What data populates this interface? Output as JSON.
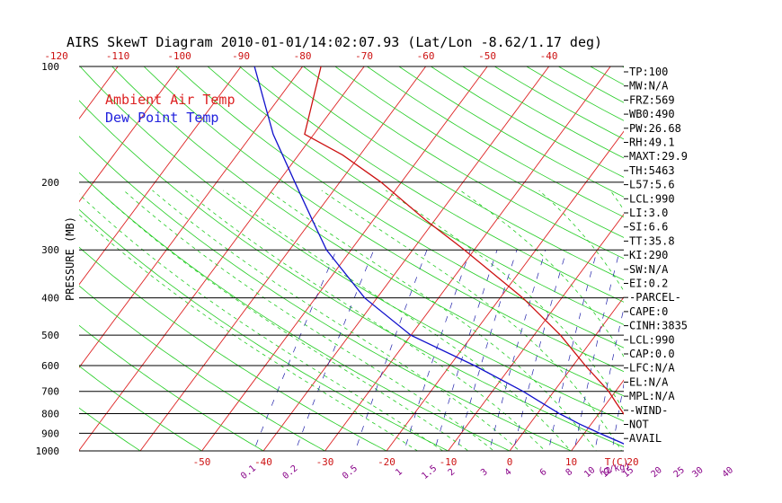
{
  "chart_data": {
    "type": "line",
    "title": "AIRS SkewT Diagram 2010-01-01/14:02:07.93 (Lat/Lon -8.62/1.17 deg)",
    "ylabel": "PRESSURE (MB)",
    "y_scale": "log",
    "ylim": [
      1000,
      100
    ],
    "pressure_ticks": [
      100,
      200,
      300,
      400,
      500,
      600,
      700,
      800,
      900,
      1000
    ],
    "pressure_tick_labels": [
      "100",
      "200",
      "300",
      "400",
      "500",
      "600",
      "700",
      "800",
      "900",
      "1000"
    ],
    "bottom_temp_ticks": [
      -50,
      -40,
      -30,
      -20,
      -10,
      0,
      10,
      20
    ],
    "bottom_temp_labels": [
      "-50",
      "-40",
      "-30",
      "-20",
      "-10",
      "0",
      "10",
      "20"
    ],
    "bottom_axis_unit_label": "T(C)",
    "top_temp_ticks": [
      -120,
      -110,
      -100,
      -90,
      -80,
      -70,
      -60,
      -50,
      -40
    ],
    "top_temp_labels": [
      "-120",
      "-110",
      "-100",
      "-90",
      "-80",
      "-70",
      "-60",
      "-50",
      "-40"
    ],
    "mixing_ratio_labels": [
      "0.1",
      "0.2",
      "0.5",
      "1",
      "1.5",
      "2",
      "3",
      "4",
      "6",
      "8",
      "10",
      "12",
      "15",
      "20",
      "25",
      "30",
      "40"
    ],
    "mixing_ratio_unit_label": "(g/kg)",
    "legend": {
      "placement": "top-left",
      "entries": [
        {
          "name": "Ambient Air Temp",
          "color": "#dd2222"
        },
        {
          "name": "Dew Point Temp",
          "color": "#2222dd"
        }
      ]
    },
    "series": [
      {
        "name": "Ambient Air Temp",
        "color": "#cc1111",
        "points": [
          {
            "p": 1000,
            "t": 24.9
          },
          {
            "p": 985,
            "t": 23.9
          },
          {
            "p": 950,
            "t": 21.5
          },
          {
            "p": 925,
            "t": 19.5
          },
          {
            "p": 900,
            "t": 18.5
          },
          {
            "p": 850,
            "t": 16.6
          },
          {
            "p": 800,
            "t": 14.0
          },
          {
            "p": 750,
            "t": 11.5
          },
          {
            "p": 700,
            "t": 8.9
          },
          {
            "p": 600,
            "t": 2.0
          },
          {
            "p": 500,
            "t": -5.7
          },
          {
            "p": 400,
            "t": -16.3
          },
          {
            "p": 300,
            "t": -31.6
          },
          {
            "p": 250,
            "t": -41.7
          },
          {
            "p": 200,
            "t": -53.3
          },
          {
            "p": 170,
            "t": -62.8
          },
          {
            "p": 150,
            "t": -71.5
          },
          {
            "p": 100,
            "t": -77.0
          }
        ]
      },
      {
        "name": "Dew Point Temp",
        "color": "#1111cc",
        "points": [
          {
            "p": 1000,
            "t": 21.0
          },
          {
            "p": 950,
            "t": 17.0
          },
          {
            "p": 900,
            "t": 12.5
          },
          {
            "p": 850,
            "t": 8.0
          },
          {
            "p": 800,
            "t": 3.6
          },
          {
            "p": 700,
            "t": -5.0
          },
          {
            "p": 600,
            "t": -16.0
          },
          {
            "p": 500,
            "t": -30.0
          },
          {
            "p": 400,
            "t": -42.0
          },
          {
            "p": 300,
            "t": -54.0
          },
          {
            "p": 250,
            "t": -60.0
          },
          {
            "p": 200,
            "t": -67.3
          },
          {
            "p": 150,
            "t": -76.6
          },
          {
            "p": 100,
            "t": -87.8
          }
        ]
      }
    ]
  },
  "indices": [
    "TP:100",
    "MW:N/A",
    "FRZ:569",
    "WB0:490",
    "PW:26.68",
    "RH:49.1",
    "MAXT:29.9",
    "TH:5463",
    "L57:5.6",
    "LCL:990",
    "LI:3.0",
    "SI:6.6",
    "TT:35.8",
    "KI:290",
    "SW:N/A",
    "EI:0.2",
    "-PARCEL-",
    "CAPE:0",
    "CINH:3835",
    "LCL:990",
    "CAP:0.0",
    "LFC:N/A",
    "EL:N/A",
    "MPL:N/A",
    "-WIND-",
    "NOT",
    "AVAIL"
  ],
  "colors": {
    "isotherm": "#dd2222",
    "dry_adiabat": "#22cc22",
    "moist_adiabat": "#22cc22",
    "mixing_ratio": "#2222aa",
    "isobar": "#000000",
    "mixing_label": "#880088",
    "axis_label_red": "#cc1111"
  }
}
